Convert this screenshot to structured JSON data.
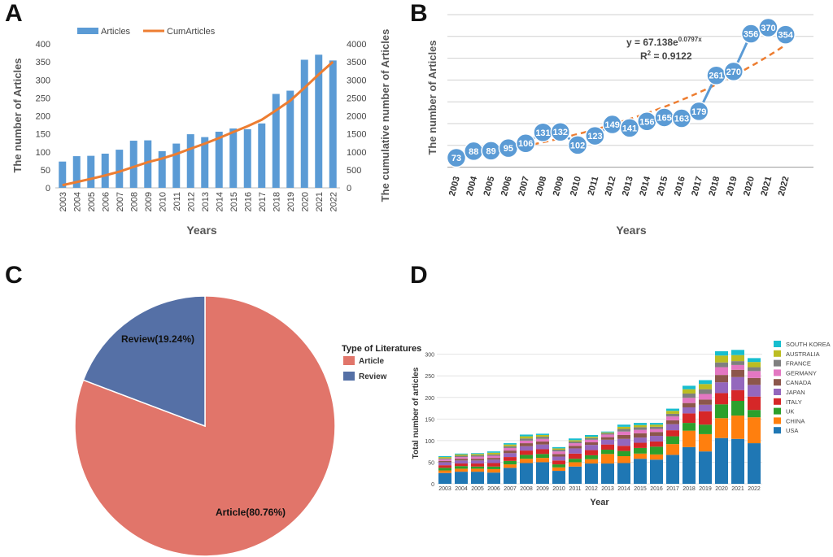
{
  "panels": {
    "a": "A",
    "b": "B",
    "c": "C",
    "d": "D"
  },
  "chart_data": [
    {
      "panel": "A",
      "type": "bar",
      "categories": [
        "2003",
        "2004",
        "2005",
        "2006",
        "2007",
        "2008",
        "2009",
        "2010",
        "2011",
        "2012",
        "2013",
        "2014",
        "2015",
        "2016",
        "2017",
        "2018",
        "2019",
        "2020",
        "2021",
        "2022"
      ],
      "series": [
        {
          "name": "Articles",
          "values": [
            73,
            88,
            89,
            95,
            106,
            131,
            132,
            102,
            123,
            149,
            141,
            156,
            165,
            163,
            179,
            261,
            270,
            356,
            370,
            354
          ],
          "axis": "left",
          "color": "#5b9bd5"
        },
        {
          "name": "CumArticles",
          "values": [
            73,
            161,
            250,
            345,
            451,
            582,
            714,
            816,
            939,
            1088,
            1229,
            1385,
            1550,
            1713,
            1892,
            2153,
            2423,
            2779,
            3149,
            3503
          ],
          "axis": "right",
          "style": "line",
          "color": "#ed7d31"
        }
      ],
      "xlabel": "Years",
      "ylabel": "The number of Articles",
      "y2label": "The cumulative number of Articles",
      "ylim": [
        0,
        400
      ],
      "y2lim": [
        0,
        4000
      ],
      "yticks": [
        "0",
        "50",
        "100",
        "150",
        "200",
        "250",
        "300",
        "350",
        "400"
      ],
      "y2ticks": [
        "0",
        "500",
        "1000",
        "1500",
        "2000",
        "2500",
        "3000",
        "3500",
        "4000"
      ],
      "legend": [
        "Articles",
        "CumArticles"
      ]
    },
    {
      "panel": "B",
      "type": "line",
      "x": [
        "2003",
        "2004",
        "2005",
        "2006",
        "2007",
        "2008",
        "2009",
        "2010",
        "2011",
        "2012",
        "2013",
        "2014",
        "2015",
        "2016",
        "2017",
        "2018",
        "2019",
        "2020",
        "2021",
        "2022"
      ],
      "values": [
        73,
        88,
        89,
        95,
        106,
        131,
        132,
        102,
        123,
        149,
        141,
        156,
        165,
        163,
        179,
        261,
        270,
        356,
        370,
        354
      ],
      "trendline": {
        "type": "exponential",
        "a": 67.138,
        "b": 0.0797
      },
      "equation": "y = 67.138e",
      "equation_exp": "0.0797x",
      "r2": "R",
      "r2_sup": "2",
      "r2_rest": " = 0.9122",
      "xlabel": "Years",
      "ylabel": "The number of Articles",
      "ylim": [
        0,
        400
      ],
      "color": "#5b9bd5",
      "trend_color": "#ed7d31"
    },
    {
      "panel": "C",
      "type": "pie",
      "legend_title": "Type of Literatures",
      "slices": [
        {
          "name": "Article",
          "value": 80.76,
          "label": "Article(80.76%)",
          "color": "#e1756a"
        },
        {
          "name": "Review",
          "value": 19.24,
          "label": "Review(19.24%)",
          "color": "#5570a6"
        }
      ]
    },
    {
      "panel": "D",
      "type": "bar",
      "stacked": true,
      "categories": [
        "2003",
        "2004",
        "2005",
        "2006",
        "2007",
        "2008",
        "2009",
        "2010",
        "2011",
        "2012",
        "2013",
        "2014",
        "2015",
        "2016",
        "2017",
        "2018",
        "2019",
        "2020",
        "2021",
        "2022"
      ],
      "series": [
        {
          "name": "USA",
          "color": "#1f77b4",
          "values": [
            25,
            28,
            28,
            26,
            37,
            48,
            50,
            30,
            40,
            47,
            47,
            48,
            58,
            56,
            67,
            85,
            75,
            106,
            104,
            94
          ]
        },
        {
          "name": "CHINA",
          "color": "#ff7f0e",
          "values": [
            6,
            7,
            7,
            8,
            8,
            10,
            10,
            8,
            10,
            10,
            22,
            16,
            12,
            12,
            25,
            38,
            40,
            46,
            54,
            60
          ]
        },
        {
          "name": "UK",
          "color": "#2ca02c",
          "values": [
            6,
            6,
            5,
            6,
            8,
            9,
            9,
            7,
            8,
            9,
            10,
            12,
            13,
            18,
            18,
            18,
            22,
            32,
            34,
            17
          ]
        },
        {
          "name": "ITALY",
          "color": "#d62728",
          "values": [
            6,
            6,
            7,
            8,
            9,
            10,
            11,
            9,
            12,
            12,
            12,
            12,
            12,
            12,
            14,
            22,
            31,
            26,
            25,
            31
          ]
        },
        {
          "name": "JAPAN",
          "color": "#9467bd",
          "values": [
            7,
            7,
            7,
            8,
            9,
            10,
            11,
            9,
            12,
            12,
            11,
            16,
            12,
            13,
            14,
            14,
            15,
            25,
            30,
            27
          ]
        },
        {
          "name": "CANADA",
          "color": "#8c564b",
          "values": [
            3,
            4,
            4,
            4,
            6,
            7,
            7,
            6,
            6,
            6,
            6,
            9,
            10,
            9,
            9,
            10,
            12,
            17,
            17,
            16
          ]
        },
        {
          "name": "GERMANY",
          "color": "#e377c2",
          "values": [
            4,
            4,
            5,
            5,
            6,
            6,
            6,
            6,
            6,
            6,
            6,
            8,
            8,
            7,
            9,
            12,
            13,
            18,
            11,
            16
          ]
        },
        {
          "name": "FRANCE",
          "color": "#7f7f7f",
          "values": [
            2,
            3,
            3,
            3,
            4,
            5,
            5,
            4,
            4,
            4,
            3,
            6,
            6,
            5,
            6,
            10,
            11,
            11,
            9,
            9
          ]
        },
        {
          "name": "AUSTRALIA",
          "color": "#bcbd22",
          "values": [
            3,
            3,
            3,
            4,
            4,
            5,
            4,
            3,
            3,
            3,
            2,
            5,
            5,
            5,
            7,
            10,
            12,
            16,
            14,
            12
          ]
        },
        {
          "name": "SOUTH KOREA",
          "color": "#17becf",
          "values": [
            2,
            2,
            2,
            3,
            3,
            4,
            3,
            3,
            4,
            4,
            2,
            5,
            5,
            4,
            5,
            8,
            9,
            10,
            12,
            9
          ]
        }
      ],
      "legend_order": [
        "SOUTH KOREA",
        "AUSTRALIA",
        "FRANCE",
        "GERMANY",
        "CANADA",
        "JAPAN",
        "ITALY",
        "UK",
        "CHINA",
        "USA"
      ],
      "xlabel": "Year",
      "ylabel": "Total number of articles",
      "ylim": [
        0,
        320
      ],
      "yticks": [
        "0",
        "50",
        "100",
        "150",
        "200",
        "250",
        "300"
      ]
    }
  ]
}
